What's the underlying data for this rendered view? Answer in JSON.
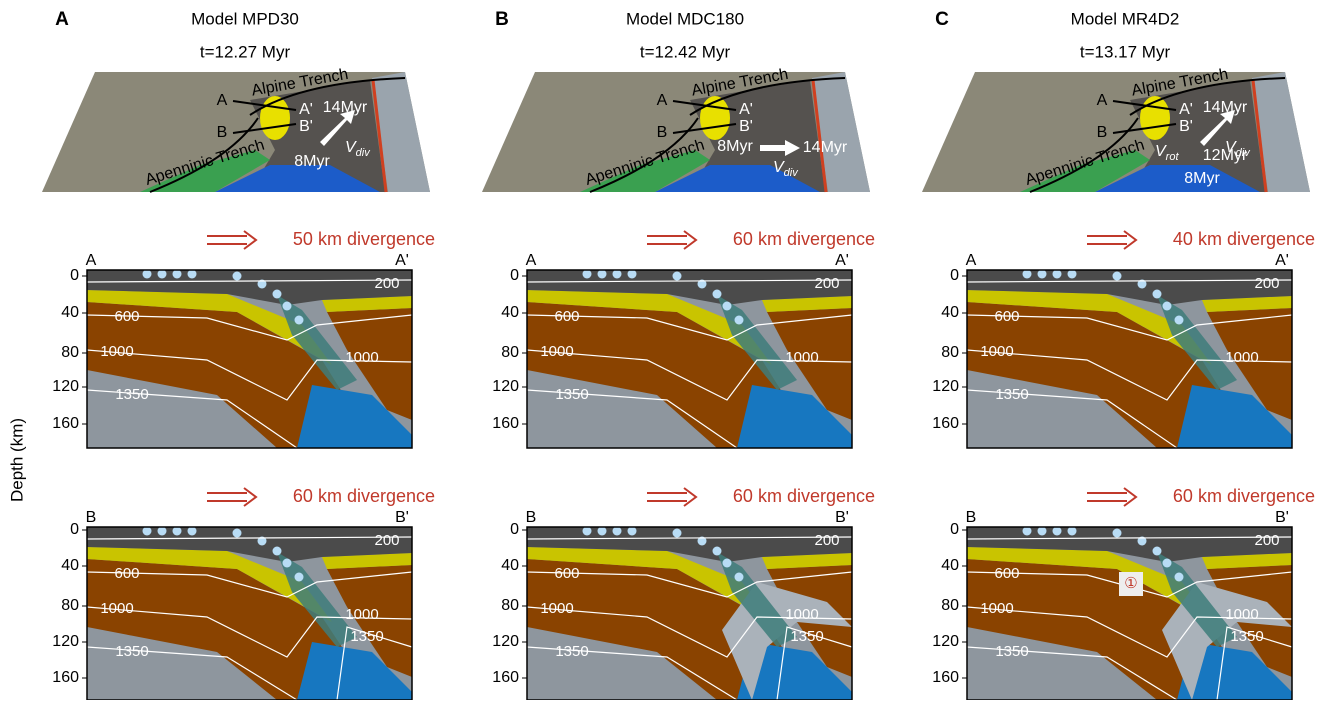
{
  "axis_label": "Depth (km)",
  "depth_ticks": [
    0,
    40,
    80,
    120,
    160
  ],
  "panels": [
    {
      "letter": "A",
      "title": "Model MPD30",
      "time": "t=12.27 Myr",
      "map": {
        "alpine": "Alpine Trench",
        "apenninic": "Apenninic Trench",
        "a": "A",
        "a2": "A'",
        "b": "B",
        "b2": "B'",
        "late": "14Myr",
        "early": "8Myr",
        "v": "V",
        "v_sub": "div"
      },
      "sections": [
        {
          "divergence": "50 km divergence",
          "start": "A",
          "end": "A'",
          "isotherms": [
            "200",
            "600",
            "1000",
            "1000",
            "1350"
          ]
        },
        {
          "divergence": "60 km divergence",
          "start": "B",
          "end": "B'",
          "isotherms": [
            "200",
            "600",
            "1000",
            "1000",
            "1350",
            "1350"
          ]
        }
      ]
    },
    {
      "letter": "B",
      "title": "Model MDC180",
      "time": "t=12.42 Myr",
      "map": {
        "alpine": "Alpine Trench",
        "apenninic": "Apenninic Trench",
        "a": "A",
        "a2": "A'",
        "b": "B",
        "b2": "B'",
        "late": "14Myr",
        "early": "8Myr",
        "v": "V",
        "v_sub": "div"
      },
      "sections": [
        {
          "divergence": "60 km divergence",
          "start": "A",
          "end": "A'",
          "isotherms": [
            "200",
            "600",
            "1000",
            "1000",
            "1350"
          ]
        },
        {
          "divergence": "60 km divergence",
          "start": "B",
          "end": "B'",
          "isotherms": [
            "200",
            "600",
            "1000",
            "1000",
            "1350",
            "1350"
          ]
        }
      ]
    },
    {
      "letter": "C",
      "title": "Model MR4D2",
      "time": "t=13.17 Myr",
      "map": {
        "alpine": "Alpine Trench",
        "apenninic": "Apenninic Trench",
        "a": "A",
        "a2": "A'",
        "b": "B",
        "b2": "B'",
        "late": "14Myr",
        "early": "8Myr",
        "v": "V",
        "v_sub": "div",
        "mid": "12Myr",
        "v2": "V",
        "v2_sub": "rot"
      },
      "sections": [
        {
          "divergence": "40 km divergence",
          "start": "A",
          "end": "A'",
          "isotherms": [
            "200",
            "600",
            "1000",
            "1000",
            "1350"
          ]
        },
        {
          "divergence": "60 km divergence",
          "start": "B",
          "end": "B'",
          "isotherms": [
            "200",
            "600",
            "1000",
            "1000",
            "1350",
            "1350"
          ],
          "marker": "①"
        }
      ]
    }
  ]
}
